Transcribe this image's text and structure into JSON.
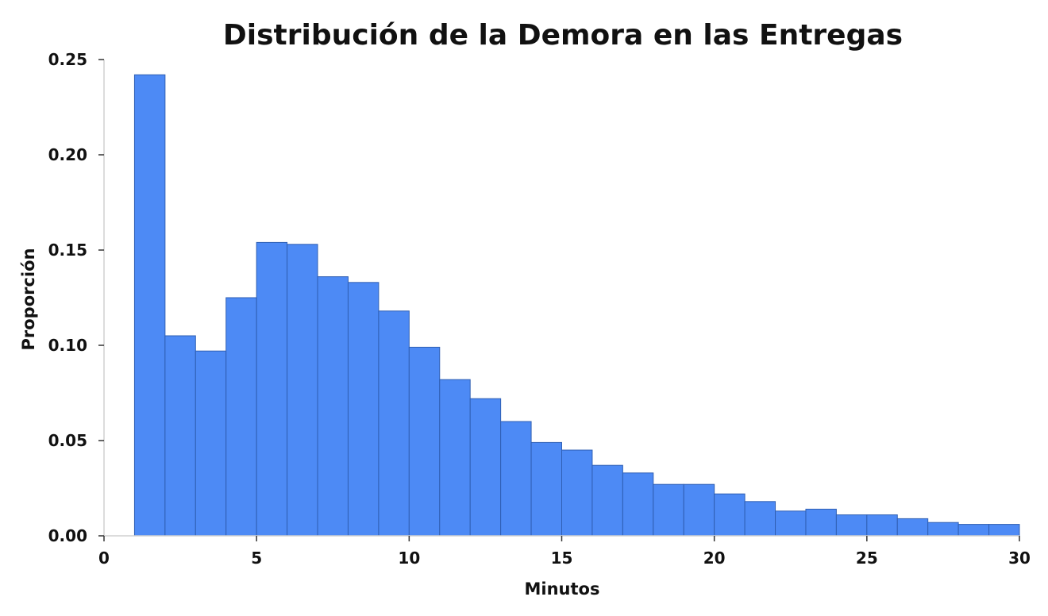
{
  "chart_data": {
    "type": "bar",
    "title": "Distribución de la Demora en las Entregas",
    "xlabel": "Minutos",
    "ylabel": "Proporción",
    "xlim": [
      0,
      30
    ],
    "ylim": [
      0,
      0.25
    ],
    "x_ticks": [
      "0",
      "5",
      "10",
      "15",
      "20",
      "25",
      "30"
    ],
    "y_ticks": [
      "0.00",
      "0.05",
      "0.10",
      "0.15",
      "0.20",
      "0.25"
    ],
    "grid": false,
    "bar_color": "#4d8af5",
    "bins": [
      {
        "start": 1,
        "end": 2,
        "value": 0.242
      },
      {
        "start": 2,
        "end": 3,
        "value": 0.105
      },
      {
        "start": 3,
        "end": 4,
        "value": 0.097
      },
      {
        "start": 4,
        "end": 5,
        "value": 0.125
      },
      {
        "start": 5,
        "end": 6,
        "value": 0.154
      },
      {
        "start": 6,
        "end": 7,
        "value": 0.153
      },
      {
        "start": 7,
        "end": 8,
        "value": 0.136
      },
      {
        "start": 8,
        "end": 9,
        "value": 0.133
      },
      {
        "start": 9,
        "end": 10,
        "value": 0.118
      },
      {
        "start": 10,
        "end": 11,
        "value": 0.099
      },
      {
        "start": 11,
        "end": 12,
        "value": 0.082
      },
      {
        "start": 12,
        "end": 13,
        "value": 0.072
      },
      {
        "start": 13,
        "end": 14,
        "value": 0.06
      },
      {
        "start": 14,
        "end": 15,
        "value": 0.049
      },
      {
        "start": 15,
        "end": 16,
        "value": 0.045
      },
      {
        "start": 16,
        "end": 17,
        "value": 0.037
      },
      {
        "start": 17,
        "end": 18,
        "value": 0.033
      },
      {
        "start": 18,
        "end": 19,
        "value": 0.027
      },
      {
        "start": 19,
        "end": 20,
        "value": 0.027
      },
      {
        "start": 20,
        "end": 21,
        "value": 0.022
      },
      {
        "start": 21,
        "end": 22,
        "value": 0.018
      },
      {
        "start": 22,
        "end": 23,
        "value": 0.013
      },
      {
        "start": 23,
        "end": 24,
        "value": 0.014
      },
      {
        "start": 24,
        "end": 25,
        "value": 0.011
      },
      {
        "start": 25,
        "end": 26,
        "value": 0.011
      },
      {
        "start": 26,
        "end": 27,
        "value": 0.009
      },
      {
        "start": 27,
        "end": 28,
        "value": 0.007
      },
      {
        "start": 28,
        "end": 29,
        "value": 0.006
      },
      {
        "start": 29,
        "end": 30,
        "value": 0.006
      }
    ]
  }
}
